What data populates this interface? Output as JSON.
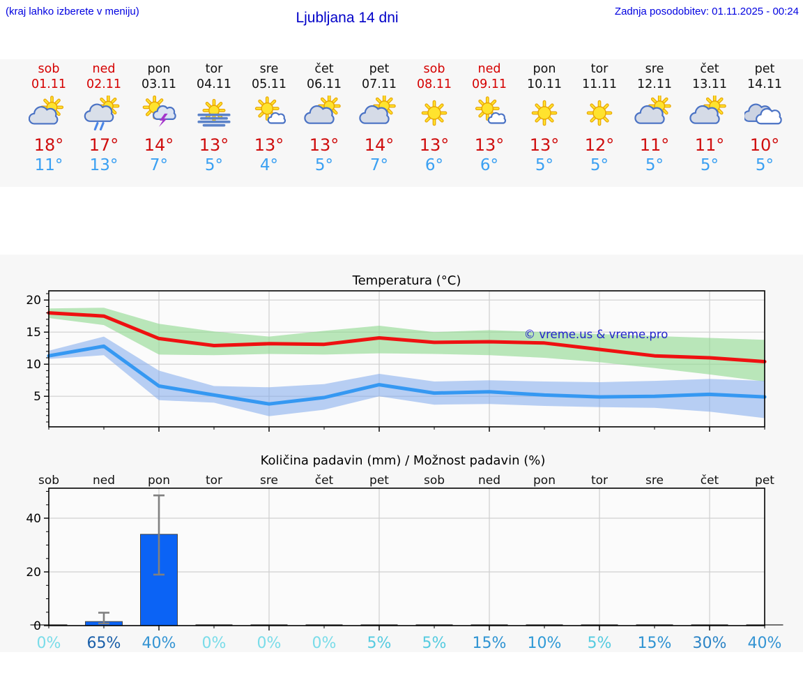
{
  "header": {
    "menu_hint": "(kraj lahko izberete v meniju)",
    "title": "Ljubljana 14 dni",
    "last_update": "Zadnja posodobitev: 01.11.2025 - 00:24"
  },
  "colors": {
    "link_blue": "#0000e0",
    "weekend_red": "#d50000",
    "high_temp_red": "#cf0e0e",
    "low_temp_blue": "#3aa0f2",
    "strip_bg": "#f7f7f7",
    "watermark_blue": "#2222cc"
  },
  "forecast": {
    "days": [
      {
        "name": "sob",
        "date": "01.11",
        "weekend": true,
        "icon": "sun-cloud",
        "high": "18°",
        "low": "11°"
      },
      {
        "name": "ned",
        "date": "02.11",
        "weekend": true,
        "icon": "sun-cloud-rain",
        "high": "17°",
        "low": "13°"
      },
      {
        "name": "pon",
        "date": "03.11",
        "weekend": false,
        "icon": "sun-cloud-thunder",
        "high": "14°",
        "low": "7°"
      },
      {
        "name": "tor",
        "date": "04.11",
        "weekend": false,
        "icon": "sun-fog",
        "high": "13°",
        "low": "5°"
      },
      {
        "name": "sre",
        "date": "05.11",
        "weekend": false,
        "icon": "sun-small-cloud",
        "high": "13°",
        "low": "4°"
      },
      {
        "name": "čet",
        "date": "06.11",
        "weekend": false,
        "icon": "cloud-sun",
        "high": "13°",
        "low": "5°"
      },
      {
        "name": "pet",
        "date": "07.11",
        "weekend": false,
        "icon": "cloud-sun",
        "high": "14°",
        "low": "7°"
      },
      {
        "name": "sob",
        "date": "08.11",
        "weekend": true,
        "icon": "sun",
        "high": "13°",
        "low": "6°"
      },
      {
        "name": "ned",
        "date": "09.11",
        "weekend": true,
        "icon": "sun-small-cloud",
        "high": "13°",
        "low": "6°"
      },
      {
        "name": "pon",
        "date": "10.11",
        "weekend": false,
        "icon": "sun",
        "high": "13°",
        "low": "5°"
      },
      {
        "name": "tor",
        "date": "11.11",
        "weekend": false,
        "icon": "sun",
        "high": "12°",
        "low": "5°"
      },
      {
        "name": "sre",
        "date": "12.11",
        "weekend": false,
        "icon": "cloud-sun",
        "high": "11°",
        "low": "5°"
      },
      {
        "name": "čet",
        "date": "13.11",
        "weekend": false,
        "icon": "cloud-sun",
        "high": "11°",
        "low": "5°"
      },
      {
        "name": "pet",
        "date": "14.11",
        "weekend": false,
        "icon": "clouds",
        "high": "10°",
        "low": "5°"
      }
    ]
  },
  "chart_data": [
    {
      "type": "line",
      "title": "Temperatura (°C)",
      "watermark": "© vreme.us & vreme.pro",
      "x_categories": [
        "sob",
        "ned",
        "pon",
        "tor",
        "sre",
        "čet",
        "pet",
        "sob",
        "ned",
        "pon",
        "tor",
        "sre",
        "čet",
        "pet"
      ],
      "ylim": [
        0,
        21.4
      ],
      "yticks": [
        5,
        10,
        15,
        20
      ],
      "grid": true,
      "legend": "none",
      "series": [
        {
          "name": "max-temperature",
          "color": "#ee1111",
          "values": [
            18,
            17.5,
            14,
            12.9,
            13.2,
            13.1,
            14.1,
            13.4,
            13.5,
            13.3,
            12.3,
            11.3,
            11,
            10.4
          ]
        },
        {
          "name": "min-temperature",
          "color": "#3598f2",
          "values": [
            11.3,
            12.8,
            6.6,
            5.2,
            3.8,
            4.8,
            6.8,
            5.5,
            5.7,
            5.2,
            4.9,
            5,
            5.3,
            4.9
          ]
        }
      ],
      "bands": [
        {
          "name": "max-range",
          "color": "#8ed88e",
          "opacity": 0.6,
          "upper": [
            18.7,
            18.8,
            16.3,
            15.1,
            14.3,
            15.2,
            16.0,
            15.0,
            15.3,
            15.0,
            14.7,
            14.4,
            14.1,
            13.8
          ],
          "lower": [
            17.2,
            16.1,
            11.5,
            11.4,
            11.6,
            11.5,
            11.7,
            11.6,
            11.4,
            11.0,
            10.3,
            9.4,
            8.4,
            7.3
          ]
        },
        {
          "name": "min-range",
          "color": "#7fa9ec",
          "opacity": 0.55,
          "upper": [
            12.1,
            14.3,
            9.0,
            6.6,
            6.4,
            6.9,
            8.5,
            7.3,
            7.5,
            7.3,
            7.2,
            7.4,
            7.7,
            7.4
          ],
          "lower": [
            10.8,
            11.4,
            4.4,
            4.0,
            1.9,
            2.9,
            5.0,
            3.7,
            3.8,
            3.5,
            3.3,
            3.2,
            2.6,
            1.6
          ]
        }
      ]
    },
    {
      "type": "bar",
      "title": "Količina padavin (mm) / Možnost padavin (%)",
      "categories": [
        "sob",
        "ned",
        "pon",
        "tor",
        "sre",
        "čet",
        "pet",
        "sob",
        "ned",
        "pon",
        "tor",
        "sre",
        "čet",
        "pet"
      ],
      "values": [
        0,
        1.5,
        34,
        0,
        0,
        0,
        0,
        0,
        0,
        0,
        0,
        0,
        0,
        0
      ],
      "error_low": [
        null,
        0.8,
        19,
        null,
        null,
        null,
        null,
        null,
        null,
        null,
        null,
        null,
        null,
        null
      ],
      "error_high": [
        null,
        4.8,
        48.5,
        null,
        null,
        null,
        null,
        null,
        null,
        null,
        null,
        null,
        null,
        null
      ],
      "probabilities": [
        "0%",
        "65%",
        "40%",
        "0%",
        "0%",
        "0%",
        "5%",
        "5%",
        "15%",
        "10%",
        "5%",
        "15%",
        "30%",
        "40%"
      ],
      "prob_colors": {
        "0%": "#7adce9",
        "5%": "#55cbe0",
        "10%": "#2f9ad6",
        "15%": "#2e93d2",
        "30%": "#2c84c6",
        "40%": "#3494d3",
        "65%": "#1a5fa9"
      },
      "ylim": [
        0,
        51.2
      ],
      "yticks": [
        0,
        20,
        40
      ],
      "grid": true,
      "bar_color": "#0b63f5",
      "error_color": "#808080"
    }
  ]
}
